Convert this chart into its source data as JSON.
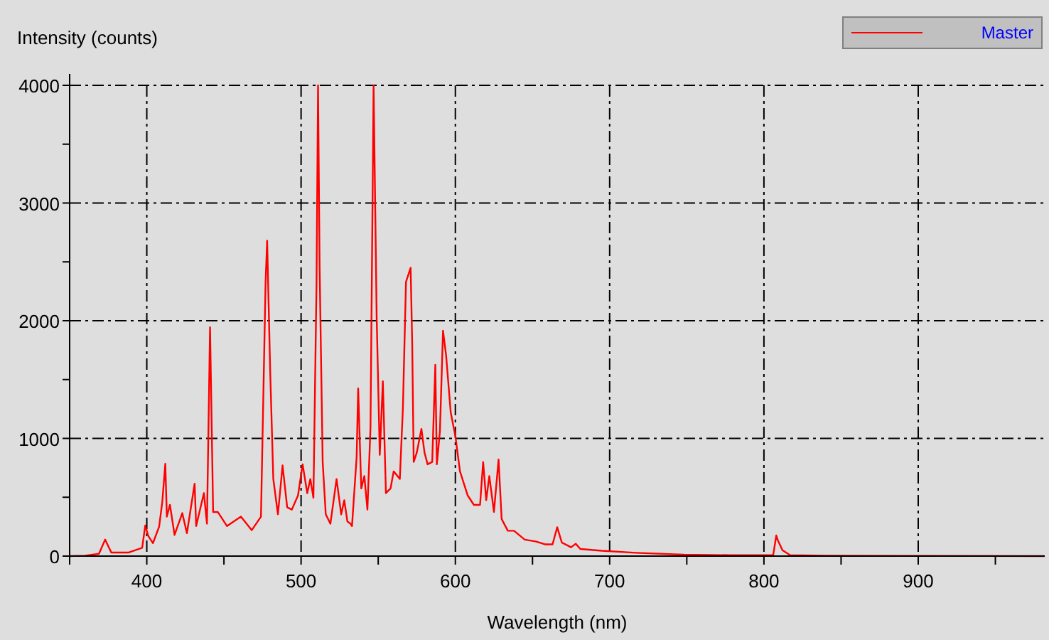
{
  "chart_data": {
    "type": "line",
    "xlabel": "Wavelength (nm)",
    "ylabel": "Intensity (counts)",
    "xlim": [
      350,
      982
    ],
    "ylim": [
      0,
      4000
    ],
    "xticks": [
      {
        "value": 350,
        "label": null
      },
      400,
      {
        "value": 450,
        "label": null
      },
      500,
      {
        "value": 550,
        "label": null
      },
      600,
      {
        "value": 650,
        "label": null
      },
      700,
      {
        "value": 750,
        "label": null
      },
      800,
      {
        "value": 850,
        "label": null
      },
      900,
      {
        "value": 950,
        "label": null
      }
    ],
    "yticks": [
      0,
      {
        "value": 500,
        "label": null
      },
      1000,
      {
        "value": 1500,
        "label": null
      },
      2000,
      {
        "value": 2500,
        "label": null
      },
      3000,
      {
        "value": 3500,
        "label": null
      },
      4000
    ],
    "grid": true,
    "legend": "top right",
    "marker": "none",
    "line_style": "solid",
    "series": [
      {
        "name": "Master",
        "color": "#ff0000",
        "x": [
          350,
          360,
          369,
          373,
          377,
          388,
          397,
          399,
          401,
          404,
          408,
          410,
          412,
          413,
          415,
          418,
          423,
          426,
          431,
          432,
          437,
          439,
          441,
          443,
          446,
          452,
          461,
          468,
          474,
          477,
          478,
          480,
          482,
          485,
          488,
          491,
          494,
          498,
          501,
          504,
          506,
          508,
          510,
          511,
          512,
          514,
          516,
          519,
          523,
          526,
          528,
          530,
          532,
          533,
          536,
          537,
          539,
          541,
          543,
          545,
          547,
          549,
          551,
          553,
          555,
          558,
          560,
          564,
          566,
          568,
          571,
          572,
          573,
          575,
          578,
          580,
          582,
          585,
          587,
          588,
          590,
          592,
          594,
          597,
          600,
          603,
          608,
          612,
          616,
          618,
          620,
          622,
          625,
          628,
          630,
          634,
          638,
          645,
          652,
          658,
          663,
          666,
          669,
          675,
          678,
          681,
          695,
          717,
          748,
          778,
          806,
          808,
          809,
          812,
          817,
          840,
          902,
          982
        ],
        "values": [
          0,
          4,
          20,
          140,
          30,
          30,
          70,
          260,
          170,
          110,
          250,
          455,
          785,
          335,
          435,
          180,
          365,
          195,
          615,
          255,
          535,
          275,
          1945,
          375,
          375,
          255,
          335,
          220,
          335,
          2330,
          2680,
          1565,
          655,
          355,
          770,
          415,
          395,
          515,
          780,
          535,
          655,
          495,
          2310,
          4000,
          2470,
          800,
          355,
          275,
          655,
          355,
          475,
          295,
          275,
          255,
          840,
          1425,
          575,
          680,
          395,
          1100,
          4000,
          2030,
          860,
          1485,
          535,
          575,
          720,
          655,
          1260,
          2330,
          2450,
          1825,
          800,
          880,
          1080,
          880,
          780,
          800,
          1625,
          780,
          1060,
          1915,
          1705,
          1220,
          1020,
          720,
          515,
          435,
          435,
          800,
          475,
          680,
          375,
          820,
          315,
          215,
          215,
          140,
          125,
          100,
          100,
          245,
          115,
          75,
          105,
          60,
          45,
          28,
          12,
          8,
          8,
          175,
          135,
          50,
          8,
          4,
          2,
          0
        ]
      }
    ]
  }
}
